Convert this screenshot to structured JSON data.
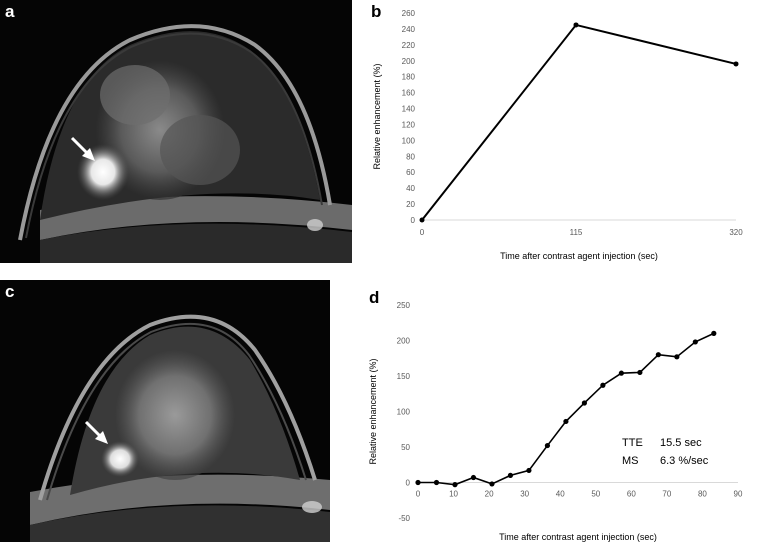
{
  "panels": {
    "a": {
      "letter": "a"
    },
    "b": {
      "letter": "b"
    },
    "c": {
      "letter": "c"
    },
    "d": {
      "letter": "d"
    }
  },
  "chart_data": [
    {
      "id": "b",
      "type": "line",
      "title": "",
      "xlabel": "Time after contrast agent injection (sec)",
      "ylabel": "Relative enhancement (%)",
      "x_scale": "categorical",
      "categories": [
        "0",
        "115",
        "320"
      ],
      "series": [
        {
          "values": [
            0,
            245,
            196
          ]
        }
      ],
      "ylim": [
        0,
        260
      ],
      "yticks": [
        0,
        20,
        40,
        60,
        80,
        100,
        120,
        140,
        160,
        180,
        200,
        220,
        240,
        260
      ],
      "grid": false,
      "line_color": "#000000"
    },
    {
      "id": "d",
      "type": "line",
      "title": "",
      "xlabel": "Time after contrast agent injection (sec)",
      "ylabel": "Relative enhancement (%)",
      "x": [
        0,
        5.2,
        10.4,
        15.6,
        20.8,
        26,
        31.2,
        36.4,
        41.6,
        46.8,
        52,
        57.2,
        62.4,
        67.6,
        72.8,
        78,
        83.2
      ],
      "series": [
        {
          "values": [
            0,
            0,
            -3,
            7,
            -2,
            10,
            17,
            52,
            86,
            112,
            137,
            154,
            155,
            180,
            177,
            198,
            210
          ]
        }
      ],
      "xlim": [
        0,
        90
      ],
      "xticks": [
        0,
        10,
        20,
        30,
        40,
        50,
        60,
        70,
        80,
        90
      ],
      "ylim": [
        -50,
        250
      ],
      "yticks": [
        -50,
        0,
        50,
        100,
        150,
        200,
        250
      ],
      "grid": false,
      "line_color": "#000000",
      "annotations": [
        {
          "name": "TTE",
          "value": "15.5 sec"
        },
        {
          "name": "MS",
          "value": "6.3 %/sec"
        }
      ]
    }
  ]
}
